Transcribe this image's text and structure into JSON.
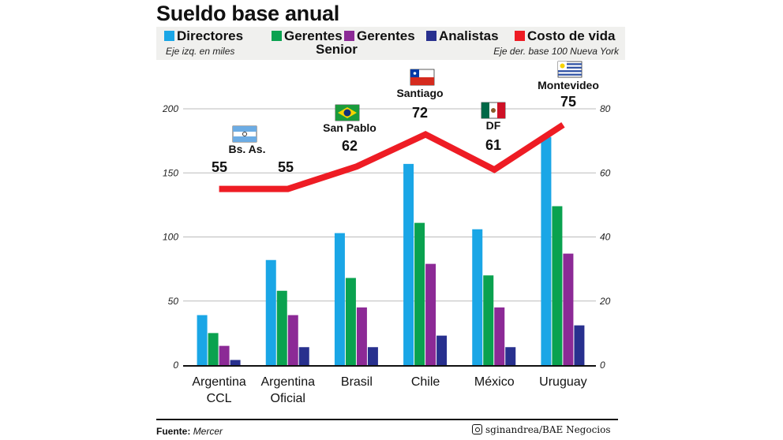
{
  "chart_data": {
    "type": "bar",
    "title": "Sueldo base anual",
    "categories": [
      "Argentina\nCCL",
      "Argentina\nOficial",
      "Brasil",
      "Chile",
      "México",
      "Uruguay"
    ],
    "category_lines": [
      [
        "Argentina",
        "CCL"
      ],
      [
        "Argentina",
        "Oficial"
      ],
      [
        "Brasil"
      ],
      [
        "Chile"
      ],
      [
        "México"
      ],
      [
        "Uruguay"
      ]
    ],
    "left_axis": {
      "note": "Eje izq. en miles",
      "ylim": [
        0,
        200
      ],
      "ticks": [
        "0",
        "50",
        "100",
        "150",
        "200"
      ]
    },
    "right_axis": {
      "note": "Eje der. base 100 Nueva York",
      "ylim": [
        0,
        80
      ],
      "ticks": [
        "0",
        "20",
        "40",
        "60",
        "80"
      ]
    },
    "grid": true,
    "legend_position": "top",
    "series": [
      {
        "name": "Directores",
        "color": "#1aa6e6",
        "axis": "left",
        "values": [
          39,
          82,
          103,
          157,
          106,
          178
        ]
      },
      {
        "name": "Gerentes Senior",
        "color": "#0aa24f",
        "axis": "left",
        "values": [
          25,
          58,
          68,
          111,
          70,
          124
        ]
      },
      {
        "name": "Gerentes",
        "color": "#8c2a96",
        "axis": "left",
        "values": [
          15,
          39,
          45,
          79,
          45,
          87
        ]
      },
      {
        "name": "Analistas",
        "color": "#28308e",
        "axis": "left",
        "values": [
          4,
          14,
          14,
          23,
          14,
          31
        ]
      },
      {
        "name": "Costo de vida",
        "color": "#ee1c24",
        "type": "line",
        "axis": "right",
        "values": [
          55,
          55,
          62,
          72,
          61,
          75
        ]
      }
    ],
    "line_labels": [
      {
        "city": "Bs. As.",
        "value": "55",
        "flag": "argentina"
      },
      {
        "city": "",
        "value": "55",
        "flag": ""
      },
      {
        "city": "San Pablo",
        "value": "62",
        "flag": "brazil"
      },
      {
        "city": "Santiago",
        "value": "72",
        "flag": "chile"
      },
      {
        "city": "DF",
        "value": "61",
        "flag": "mexico"
      },
      {
        "city": "Montevideo",
        "value": "75",
        "flag": "uruguay"
      }
    ]
  },
  "legend": {
    "directores": "Directores",
    "gerentes_senior_1": "Gerentes",
    "gerentes_senior_2": "Senior",
    "gerentes": "Gerentes",
    "analistas": "Analistas",
    "costo": "Costo de vida",
    "left_note": "Eje izq. en miles",
    "right_note": "Eje der. base 100 Nueva York"
  },
  "footer": {
    "source_label": "Fuente:",
    "source": "Mercer",
    "credit_icon": "instagram-icon",
    "credit": "sginandrea/BAE Negocios"
  }
}
